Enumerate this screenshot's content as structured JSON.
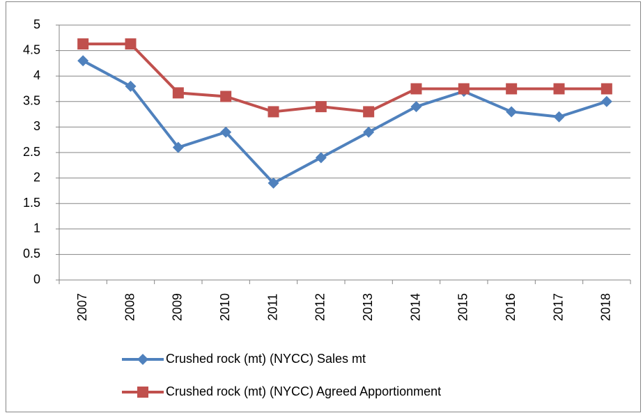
{
  "chart_data": {
    "type": "line",
    "categories": [
      "2007",
      "2008",
      "2009",
      "2010",
      "2011",
      "2012",
      "2013",
      "2014",
      "2015",
      "2016",
      "2017",
      "2018"
    ],
    "series": [
      {
        "name": "Crushed rock (mt) (NYCC) Sales mt",
        "color": "#4f81bd",
        "marker": "diamond",
        "values": [
          4.3,
          3.8,
          2.6,
          2.9,
          1.9,
          2.4,
          2.9,
          3.4,
          3.7,
          3.3,
          3.2,
          3.5
        ]
      },
      {
        "name": "Crushed rock (mt) (NYCC) Agreed Apportionment",
        "color": "#c0504d",
        "marker": "square",
        "values": [
          4.63,
          4.63,
          3.67,
          3.6,
          3.3,
          3.4,
          3.3,
          3.75,
          3.75,
          3.75,
          3.75,
          3.75
        ]
      }
    ],
    "ylim": [
      0,
      5
    ],
    "yticks": [
      0,
      0.5,
      1,
      1.5,
      2,
      2.5,
      3,
      3.5,
      4,
      4.5,
      5
    ],
    "grid": true,
    "legend": "bottom"
  }
}
